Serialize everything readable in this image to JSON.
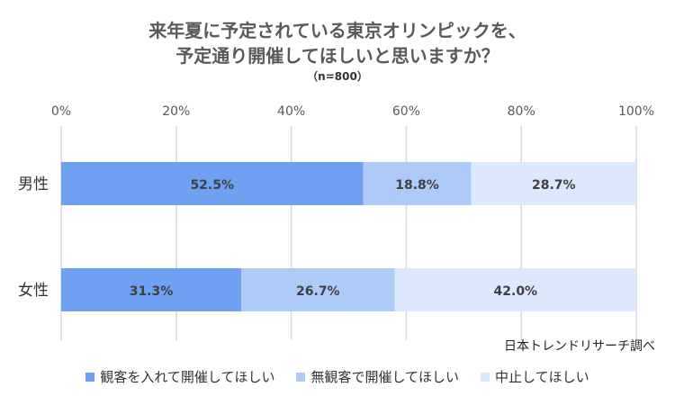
{
  "chart_data": {
    "type": "bar",
    "orientation": "horizontal",
    "stacked": true,
    "title_lines": [
      "来年夏に予定されている東京オリンピックを、",
      "予定通り開催してほしいと思いますか？"
    ],
    "subtitle": "（n=800）",
    "categories": [
      "男性",
      "女性"
    ],
    "series": [
      {
        "name": "観客を入れて開催してほしい",
        "values": [
          52.5,
          31.3
        ],
        "color": "#6fa0f2"
      },
      {
        "name": "無観客で開催してほしい",
        "values": [
          18.8,
          26.7
        ],
        "color": "#aecbf8"
      },
      {
        "name": "中止してほしい",
        "values": [
          28.7,
          42.0
        ],
        "color": "#dce8fb"
      }
    ],
    "xlim": [
      0,
      100
    ],
    "x_ticks": [
      "0%",
      "20%",
      "40%",
      "60%",
      "80%",
      "100%"
    ],
    "grid": true,
    "legend_position": "bottom",
    "source_note": "日本トレンドリサーチ調べ"
  }
}
